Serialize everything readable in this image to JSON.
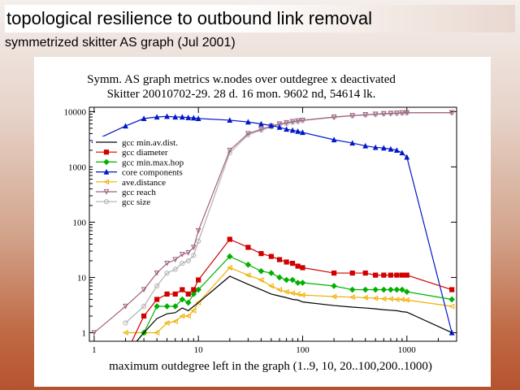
{
  "slide": {
    "title": "topological resilience to outbound link removal",
    "subtitle": "symmetrized skitter AS graph (Jul 2001)"
  },
  "chart_data": {
    "type": "line",
    "title": "Symm. AS graph metrics w.nodes over outdegree x deactivated",
    "subtitle": "Skitter 20010702-29. 28 d. 16 mon. 9602 nd, 54614 lk.",
    "xlabel": "maximum outdegree left in the graph (1..9, 10, 20..100,200..1000)",
    "ylabel": "",
    "xscale": "log",
    "yscale": "log",
    "xlim": [
      0.9,
      3000
    ],
    "ylim": [
      0.7,
      12000
    ],
    "xticks": [
      1,
      10,
      100,
      1000
    ],
    "xtick_labels": [
      "1",
      "10",
      "100",
      "1000"
    ],
    "yticks": [
      1,
      10,
      100,
      1000,
      10000
    ],
    "ytick_labels": [
      "1",
      "10",
      "100",
      "1000",
      "10000"
    ],
    "legend_position": "top-left",
    "x": [
      1,
      2,
      3,
      4,
      5,
      6,
      7,
      8,
      9,
      10,
      20,
      30,
      40,
      50,
      60,
      70,
      80,
      90,
      100,
      200,
      300,
      400,
      500,
      600,
      700,
      800,
      900,
      1000,
      2700
    ],
    "series": [
      {
        "name": "gcc min.av.dist.",
        "color": "#000000",
        "marker": "none",
        "values": [
          null,
          0.4,
          1.0,
          1.8,
          2.2,
          2.3,
          2.8,
          2.5,
          3.0,
          3.5,
          10.5,
          7.5,
          6.0,
          5.0,
          4.6,
          4.3,
          4.0,
          3.9,
          3.6,
          3.1,
          2.9,
          2.8,
          2.7,
          2.6,
          2.55,
          2.5,
          2.4,
          2.35,
          1.0
        ]
      },
      {
        "name": "gcc diameter",
        "color": "#d00000",
        "marker": "square",
        "values": [
          null,
          0.4,
          2.0,
          4.0,
          5.0,
          5.0,
          6.0,
          5.0,
          6.0,
          9.0,
          49,
          35,
          27,
          24,
          21,
          19,
          18,
          16,
          15,
          12,
          12,
          12,
          11,
          11,
          11,
          11,
          11,
          11,
          6.0
        ]
      },
      {
        "name": "gcc min.max.hop",
        "color": "#00b000",
        "marker": "diamond",
        "values": [
          null,
          0.4,
          1.0,
          3.0,
          3.0,
          3.0,
          4.0,
          3.5,
          5.0,
          6.0,
          24,
          17,
          13,
          12,
          10,
          9,
          9,
          8,
          8,
          7,
          6,
          6,
          6,
          6,
          6,
          6,
          6,
          5.5,
          4.0
        ]
      },
      {
        "name": "core components",
        "color": "#0018c8",
        "marker": "triangle-up",
        "values": [
          3000,
          5500,
          7500,
          8000,
          8200,
          8000,
          8000,
          7800,
          7700,
          7500,
          7000,
          6500,
          6000,
          5600,
          5200,
          4800,
          4600,
          4400,
          4200,
          3100,
          2700,
          2400,
          2250,
          2200,
          2100,
          2000,
          1800,
          1500,
          1.0
        ]
      },
      {
        "name": "ave.distance",
        "color": "#f0b000",
        "marker": "triangle-left",
        "values": [
          null,
          1.0,
          1.0,
          1.0,
          1.5,
          1.6,
          2.0,
          2.0,
          2.5,
          3.5,
          15,
          11,
          9,
          7,
          6,
          5.5,
          5.2,
          5.0,
          4.8,
          4.5,
          4.4,
          4.3,
          4.2,
          4.1,
          4.1,
          4.0,
          4.0,
          3.9,
          3.0
        ]
      },
      {
        "name": "gcc reach",
        "color": "#a06080",
        "marker": "triangle-down",
        "values": [
          1.0,
          3.0,
          6.0,
          12,
          18,
          21,
          26,
          28,
          35,
          70,
          2000,
          4000,
          4800,
          5500,
          6000,
          6300,
          6600,
          6800,
          7000,
          8000,
          8500,
          8800,
          9000,
          9200,
          9300,
          9400,
          9500,
          9550,
          9600
        ]
      },
      {
        "name": "gcc size",
        "color": "#b0b0b0",
        "marker": "circle",
        "values": [
          null,
          1.5,
          3.0,
          7,
          12,
          14,
          18,
          20,
          25,
          45,
          1800,
          3800,
          4600,
          5300,
          5800,
          6100,
          6400,
          6600,
          6900,
          7900,
          8400,
          8700,
          8900,
          9100,
          9200,
          9300,
          9400,
          9500,
          9600
        ]
      }
    ]
  }
}
